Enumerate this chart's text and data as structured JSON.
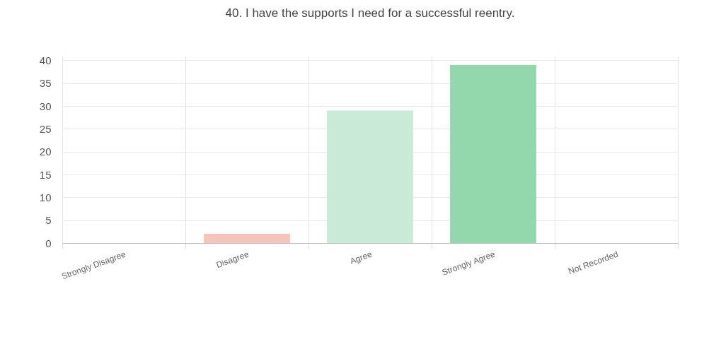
{
  "chart_data": {
    "type": "bar",
    "title": "40. I have the supports I need for a successful reentry.",
    "categories": [
      "Strongly Disagree",
      "Disagree",
      "Agree",
      "Strongly Agree",
      "Not Recorded"
    ],
    "values": [
      0,
      2,
      29,
      39,
      0
    ],
    "colors": [
      "#f19a8f",
      "#f5c4ba",
      "#c9ead6",
      "#93d8ad",
      "#cccccc"
    ],
    "ylim": [
      0,
      41
    ],
    "yticks": [
      0,
      5,
      10,
      15,
      20,
      25,
      30,
      35,
      40
    ],
    "grid": true
  }
}
